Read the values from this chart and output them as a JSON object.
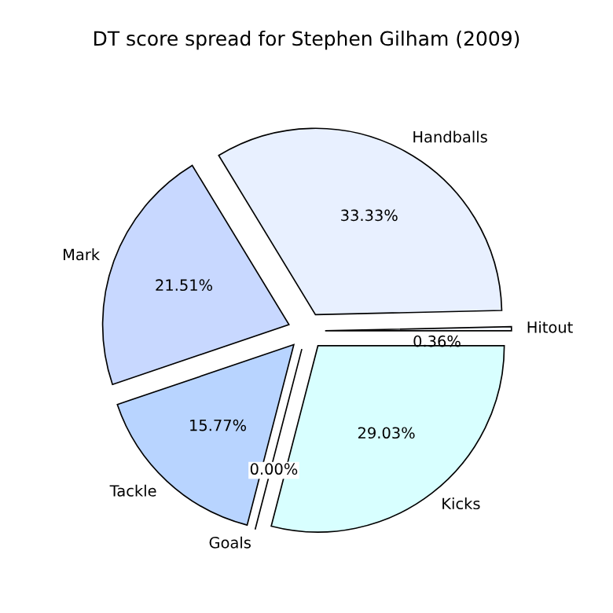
{
  "chart_data": {
    "type": "pie",
    "title": "DT score spread for Stephen Gilham (2009)",
    "categories": [
      "Hitout",
      "Handballs",
      "Mark",
      "Tackle",
      "Goals",
      "Kicks"
    ],
    "values": [
      0.36,
      33.33,
      21.51,
      15.77,
      0.0,
      29.03
    ],
    "value_labels": [
      "0.36%",
      "33.33%",
      "21.51%",
      "15.77%",
      "0.00%",
      "29.03%"
    ],
    "colors": [
      "#f4f8ff",
      "#e8f0ff",
      "#c8d8ff",
      "#b8d4ff",
      "#c0e0ff",
      "#d8ffff"
    ],
    "legend": false
  }
}
